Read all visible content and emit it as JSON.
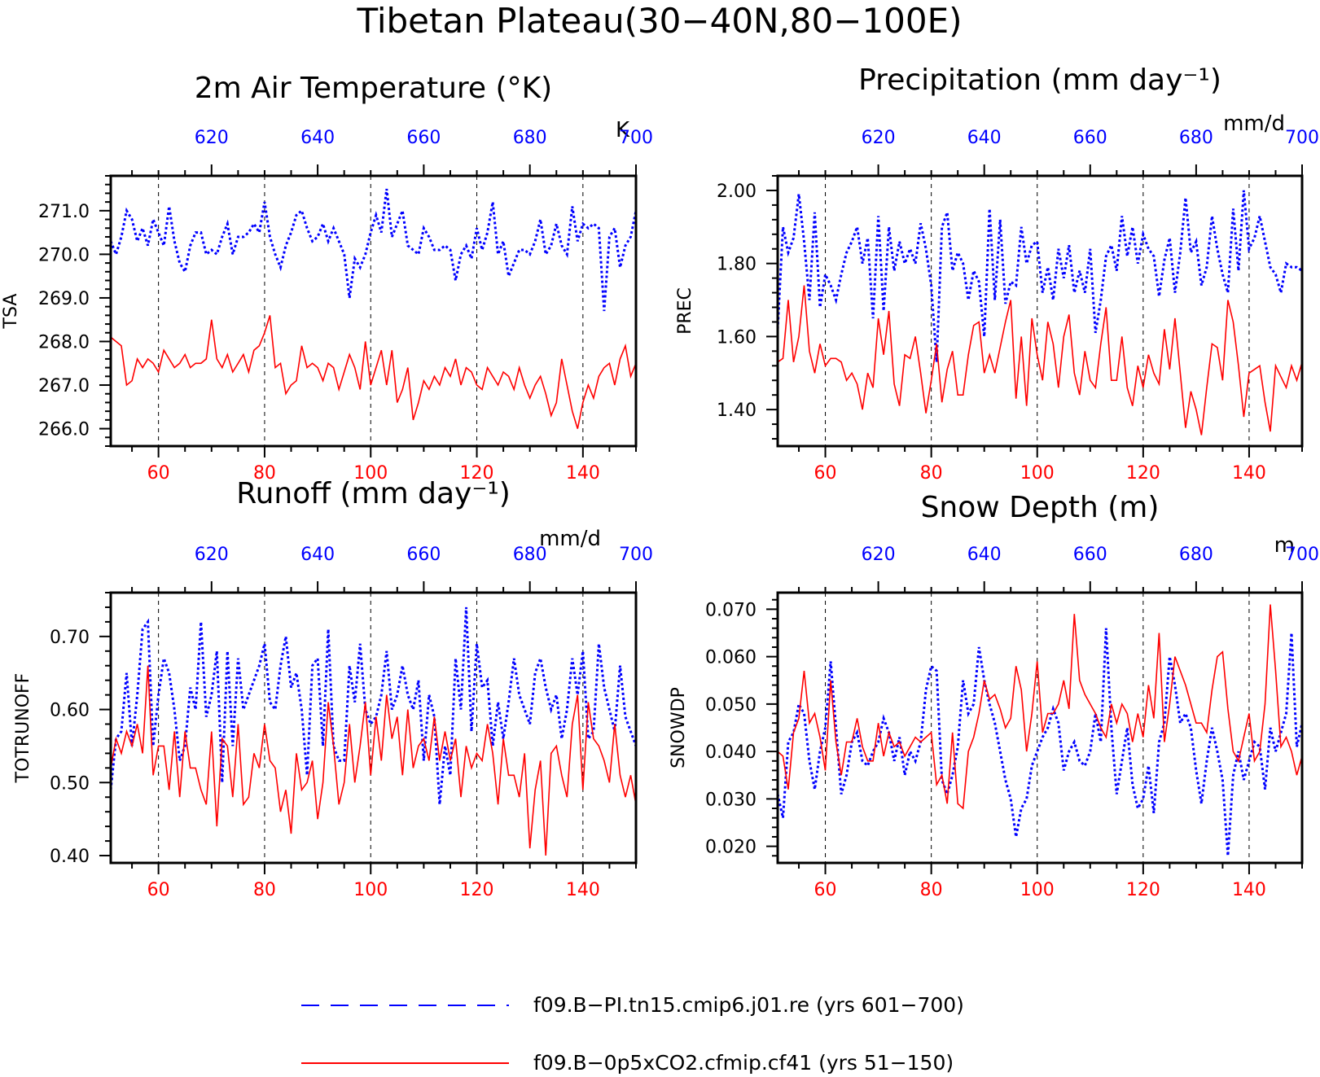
{
  "page_title": "Tibetan Plateau(30−40N,80−100E)",
  "colors": {
    "red": "#ff0000",
    "blue": "#0000ff",
    "axis": "#000000"
  },
  "legend": {
    "blue_label": "f09.B−PI.tn15.cmip6.j01.re (yrs 601−700)",
    "red_label": "f09.B−0p5xCO2.cfmip.cf41 (yrs 51−150)"
  },
  "chart_data": [
    {
      "type": "line",
      "title": "2m Air Temperature (°K)",
      "ylabel": "TSA",
      "units_label": "K",
      "ylim": [
        265.6,
        271.8
      ],
      "yticks": [
        266,
        267,
        268,
        269,
        270,
        271
      ],
      "ytick_labels": [
        "266.0",
        "267.0",
        "268.0",
        "269.0",
        "270.0",
        "271.0"
      ],
      "grid": "dashed vertical at bottom x ticks",
      "x_bottom": {
        "range": [
          51,
          150
        ],
        "ticks": [
          60,
          80,
          100,
          120,
          140
        ]
      },
      "x_top": {
        "range": [
          601,
          700
        ],
        "ticks": [
          620,
          640,
          660,
          680,
          700
        ]
      },
      "series": [
        {
          "name": "f09.B−PI.tn15.cmip6.j01.re (yrs 601−700)",
          "axis": "top",
          "style": "dashed",
          "color": "#0000ff",
          "values": [
            270.3,
            270.0,
            270.4,
            271.0,
            270.8,
            270.3,
            270.6,
            270.2,
            270.8,
            270.5,
            270.2,
            271.1,
            270.3,
            269.8,
            269.6,
            270.2,
            270.5,
            270.5,
            270.0,
            270.1,
            270.0,
            270.4,
            270.7,
            270.0,
            270.4,
            270.4,
            270.5,
            270.7,
            270.5,
            271.2,
            270.4,
            270.0,
            269.7,
            270.2,
            270.5,
            270.9,
            271.0,
            270.6,
            270.3,
            270.4,
            270.7,
            270.3,
            270.6,
            270.3,
            270.0,
            269.0,
            269.9,
            269.7,
            270.0,
            270.5,
            270.9,
            270.5,
            271.5,
            270.4,
            270.7,
            271.0,
            270.2,
            270.1,
            270.0,
            270.6,
            270.4,
            270.1,
            270.1,
            270.2,
            270.1,
            269.4,
            270.0,
            270.2,
            269.9,
            270.6,
            270.1,
            270.5,
            271.2,
            270.0,
            270.3,
            269.5,
            269.8,
            270.1,
            270.1,
            270.0,
            270.3,
            270.8,
            270.0,
            270.2,
            270.7,
            270.2,
            270.0,
            271.1,
            270.3,
            270.7,
            270.6,
            270.7,
            270.6,
            268.7,
            270.4,
            270.6,
            269.7,
            270.2,
            270.4,
            271.0
          ]
        },
        {
          "name": "f09.B−0p5xCO2.cfmip.cf41 (yrs 51−150)",
          "axis": "bottom",
          "style": "solid",
          "color": "#ff0000",
          "values": [
            268.1,
            268.0,
            267.9,
            267.0,
            267.1,
            267.6,
            267.4,
            267.6,
            267.5,
            267.3,
            267.8,
            267.6,
            267.4,
            267.5,
            267.7,
            267.4,
            267.5,
            267.5,
            267.6,
            268.5,
            267.6,
            267.4,
            267.7,
            267.3,
            267.5,
            267.7,
            267.3,
            267.8,
            267.9,
            268.2,
            268.6,
            267.4,
            267.5,
            266.8,
            267.0,
            267.1,
            267.9,
            267.4,
            267.5,
            267.4,
            267.1,
            267.5,
            267.4,
            266.9,
            267.3,
            267.7,
            267.4,
            266.9,
            268.0,
            267.0,
            267.4,
            267.8,
            267.0,
            267.8,
            266.6,
            266.9,
            267.4,
            266.2,
            266.6,
            267.1,
            266.9,
            267.2,
            267.0,
            267.4,
            267.2,
            267.6,
            267.0,
            267.4,
            267.3,
            267.0,
            266.9,
            267.4,
            267.2,
            267.0,
            267.3,
            267.2,
            266.9,
            267.4,
            267.0,
            266.7,
            267.0,
            267.2,
            266.8,
            266.3,
            266.6,
            267.6,
            267.0,
            266.4,
            266.0,
            266.6,
            267.0,
            266.7,
            267.2,
            267.4,
            267.5,
            267.0,
            267.6,
            267.9,
            267.2,
            267.5
          ]
        }
      ]
    },
    {
      "type": "line",
      "title": "Precipitation (mm day⁻¹)",
      "ylabel": "PREC",
      "units_label": "mm/d",
      "ylim": [
        1.3,
        2.04
      ],
      "yticks": [
        1.4,
        1.6,
        1.8,
        2.0
      ],
      "ytick_labels": [
        "1.40",
        "1.60",
        "1.80",
        "2.00"
      ],
      "grid": "dashed vertical at bottom x ticks",
      "x_bottom": {
        "range": [
          51,
          150
        ],
        "ticks": [
          60,
          80,
          100,
          120,
          140
        ]
      },
      "x_top": {
        "range": [
          601,
          700
        ],
        "ticks": [
          620,
          640,
          660,
          680,
          700
        ]
      },
      "series": [
        {
          "name": "f09.B−PI.tn15.cmip6.j01.re (yrs 601−700)",
          "axis": "top",
          "style": "dashed",
          "color": "#0000ff",
          "values": [
            1.62,
            1.9,
            1.83,
            1.87,
            1.99,
            1.86,
            1.7,
            1.94,
            1.68,
            1.77,
            1.74,
            1.7,
            1.77,
            1.83,
            1.86,
            1.9,
            1.8,
            1.87,
            1.65,
            1.93,
            1.67,
            1.9,
            1.78,
            1.86,
            1.8,
            1.84,
            1.8,
            1.91,
            1.84,
            1.74,
            1.53,
            1.9,
            1.94,
            1.78,
            1.83,
            1.8,
            1.7,
            1.78,
            1.75,
            1.6,
            1.95,
            1.7,
            1.92,
            1.69,
            1.75,
            1.74,
            1.9,
            1.8,
            1.85,
            1.86,
            1.72,
            1.79,
            1.7,
            1.84,
            1.76,
            1.85,
            1.72,
            1.78,
            1.72,
            1.84,
            1.61,
            1.7,
            1.82,
            1.85,
            1.78,
            1.93,
            1.82,
            1.9,
            1.8,
            1.88,
            1.84,
            1.82,
            1.71,
            1.81,
            1.87,
            1.72,
            1.83,
            1.98,
            1.83,
            1.86,
            1.74,
            1.79,
            1.93,
            1.84,
            1.77,
            1.72,
            1.95,
            1.78,
            2.0,
            1.84,
            1.87,
            1.93,
            1.86,
            1.79,
            1.77,
            1.72,
            1.8,
            1.79,
            1.79,
            1.78
          ]
        },
        {
          "name": "f09.B−0p5xCO2.cfmip.cf41 (yrs 51−150)",
          "axis": "bottom",
          "style": "solid",
          "color": "#ff0000",
          "values": [
            1.53,
            1.54,
            1.7,
            1.53,
            1.6,
            1.74,
            1.56,
            1.5,
            1.58,
            1.52,
            1.54,
            1.54,
            1.53,
            1.48,
            1.5,
            1.47,
            1.4,
            1.5,
            1.46,
            1.65,
            1.55,
            1.67,
            1.47,
            1.41,
            1.55,
            1.54,
            1.6,
            1.5,
            1.39,
            1.48,
            1.58,
            1.42,
            1.51,
            1.56,
            1.44,
            1.44,
            1.55,
            1.63,
            1.64,
            1.5,
            1.55,
            1.5,
            1.57,
            1.64,
            1.7,
            1.43,
            1.6,
            1.41,
            1.65,
            1.55,
            1.48,
            1.64,
            1.58,
            1.46,
            1.6,
            1.66,
            1.5,
            1.44,
            1.56,
            1.48,
            1.46,
            1.58,
            1.68,
            1.48,
            1.48,
            1.6,
            1.46,
            1.41,
            1.52,
            1.46,
            1.55,
            1.5,
            1.47,
            1.62,
            1.51,
            1.65,
            1.5,
            1.35,
            1.45,
            1.4,
            1.33,
            1.46,
            1.58,
            1.57,
            1.48,
            1.7,
            1.64,
            1.52,
            1.38,
            1.5,
            1.51,
            1.52,
            1.42,
            1.34,
            1.52,
            1.49,
            1.46,
            1.52,
            1.48,
            1.53
          ]
        }
      ]
    },
    {
      "type": "line",
      "title": "Runoff (mm day⁻¹)",
      "ylabel": "TOTRUNOFF",
      "units_label": "mm/d",
      "ylim": [
        0.39,
        0.76
      ],
      "yticks": [
        0.4,
        0.5,
        0.6,
        0.7
      ],
      "ytick_labels": [
        "0.40",
        "0.50",
        "0.60",
        "0.70"
      ],
      "grid": "dashed vertical at bottom x ticks",
      "x_bottom": {
        "range": [
          51,
          150
        ],
        "ticks": [
          60,
          80,
          100,
          120,
          140
        ]
      },
      "x_top": {
        "range": [
          601,
          700
        ],
        "ticks": [
          620,
          640,
          660,
          680,
          700
        ]
      },
      "series": [
        {
          "name": "f09.B−PI.tn15.cmip6.j01.re (yrs 601−700)",
          "axis": "top",
          "style": "dashed",
          "color": "#0000ff",
          "values": [
            0.49,
            0.56,
            0.57,
            0.65,
            0.55,
            0.62,
            0.71,
            0.72,
            0.55,
            0.62,
            0.67,
            0.65,
            0.6,
            0.53,
            0.55,
            0.63,
            0.6,
            0.72,
            0.59,
            0.62,
            0.68,
            0.5,
            0.68,
            0.55,
            0.67,
            0.6,
            0.62,
            0.64,
            0.66,
            0.69,
            0.61,
            0.6,
            0.66,
            0.7,
            0.63,
            0.65,
            0.6,
            0.51,
            0.66,
            0.67,
            0.55,
            0.71,
            0.55,
            0.53,
            0.53,
            0.66,
            0.61,
            0.69,
            0.6,
            0.58,
            0.59,
            0.62,
            0.68,
            0.6,
            0.62,
            0.66,
            0.62,
            0.6,
            0.64,
            0.53,
            0.62,
            0.59,
            0.47,
            0.55,
            0.51,
            0.67,
            0.6,
            0.74,
            0.57,
            0.69,
            0.63,
            0.64,
            0.55,
            0.61,
            0.56,
            0.61,
            0.67,
            0.62,
            0.6,
            0.58,
            0.65,
            0.67,
            0.63,
            0.6,
            0.62,
            0.56,
            0.6,
            0.67,
            0.62,
            0.68,
            0.56,
            0.57,
            0.69,
            0.63,
            0.6,
            0.57,
            0.66,
            0.59,
            0.57,
            0.55
          ]
        },
        {
          "name": "f09.B−0p5xCO2.cfmip.cf41 (yrs 51−150)",
          "axis": "bottom",
          "style": "solid",
          "color": "#ff0000",
          "values": [
            0.52,
            0.56,
            0.54,
            0.57,
            0.55,
            0.58,
            0.54,
            0.66,
            0.51,
            0.55,
            0.55,
            0.49,
            0.57,
            0.48,
            0.57,
            0.52,
            0.52,
            0.49,
            0.47,
            0.57,
            0.44,
            0.56,
            0.55,
            0.48,
            0.58,
            0.47,
            0.48,
            0.54,
            0.52,
            0.58,
            0.53,
            0.52,
            0.46,
            0.49,
            0.43,
            0.54,
            0.49,
            0.5,
            0.53,
            0.45,
            0.5,
            0.61,
            0.55,
            0.47,
            0.5,
            0.58,
            0.5,
            0.55,
            0.61,
            0.51,
            0.59,
            0.53,
            0.62,
            0.56,
            0.59,
            0.51,
            0.6,
            0.52,
            0.55,
            0.56,
            0.53,
            0.59,
            0.53,
            0.57,
            0.53,
            0.56,
            0.48,
            0.55,
            0.52,
            0.54,
            0.53,
            0.58,
            0.54,
            0.47,
            0.56,
            0.51,
            0.51,
            0.48,
            0.54,
            0.41,
            0.49,
            0.53,
            0.4,
            0.54,
            0.55,
            0.51,
            0.48,
            0.58,
            0.62,
            0.49,
            0.61,
            0.56,
            0.55,
            0.53,
            0.5,
            0.58,
            0.51,
            0.48,
            0.51,
            0.47
          ]
        }
      ]
    },
    {
      "type": "line",
      "title": "Snow Depth (m)",
      "ylabel": "SNOWDP",
      "units_label": "m",
      "ylim": [
        0.0165,
        0.0735
      ],
      "yticks": [
        0.02,
        0.03,
        0.04,
        0.05,
        0.06,
        0.07
      ],
      "ytick_labels": [
        "0.020",
        "0.030",
        "0.040",
        "0.050",
        "0.060",
        "0.070"
      ],
      "grid": "dashed vertical at bottom x ticks",
      "x_bottom": {
        "range": [
          51,
          150
        ],
        "ticks": [
          60,
          80,
          100,
          120,
          140
        ]
      },
      "x_top": {
        "range": [
          601,
          700
        ],
        "ticks": [
          620,
          640,
          660,
          680,
          700
        ]
      },
      "series": [
        {
          "name": "f09.B−PI.tn15.cmip6.j01.re (yrs 601−700)",
          "axis": "top",
          "style": "dashed",
          "color": "#0000ff",
          "values": [
            0.031,
            0.026,
            0.042,
            0.044,
            0.05,
            0.048,
            0.038,
            0.032,
            0.04,
            0.045,
            0.059,
            0.045,
            0.031,
            0.035,
            0.042,
            0.044,
            0.038,
            0.037,
            0.04,
            0.042,
            0.047,
            0.044,
            0.038,
            0.043,
            0.035,
            0.04,
            0.038,
            0.042,
            0.053,
            0.058,
            0.057,
            0.034,
            0.031,
            0.035,
            0.041,
            0.055,
            0.048,
            0.05,
            0.062,
            0.055,
            0.05,
            0.046,
            0.04,
            0.034,
            0.03,
            0.022,
            0.028,
            0.03,
            0.037,
            0.04,
            0.043,
            0.045,
            0.049,
            0.046,
            0.036,
            0.04,
            0.042,
            0.038,
            0.037,
            0.04,
            0.048,
            0.042,
            0.066,
            0.045,
            0.031,
            0.038,
            0.045,
            0.033,
            0.028,
            0.03,
            0.037,
            0.027,
            0.042,
            0.046,
            0.06,
            0.054,
            0.046,
            0.048,
            0.045,
            0.036,
            0.029,
            0.038,
            0.045,
            0.04,
            0.034,
            0.018,
            0.035,
            0.04,
            0.034,
            0.038,
            0.042,
            0.041,
            0.032,
            0.045,
            0.04,
            0.044,
            0.048,
            0.065,
            0.041,
            0.046
          ]
        },
        {
          "name": "f09.B−0p5xCO2.cfmip.cf41 (yrs 51−150)",
          "axis": "bottom",
          "style": "solid",
          "color": "#ff0000",
          "values": [
            0.04,
            0.039,
            0.032,
            0.044,
            0.047,
            0.057,
            0.046,
            0.048,
            0.043,
            0.036,
            0.055,
            0.042,
            0.035,
            0.042,
            0.042,
            0.047,
            0.041,
            0.038,
            0.038,
            0.046,
            0.039,
            0.044,
            0.041,
            0.042,
            0.039,
            0.041,
            0.043,
            0.042,
            0.043,
            0.044,
            0.033,
            0.035,
            0.029,
            0.044,
            0.029,
            0.028,
            0.04,
            0.043,
            0.048,
            0.055,
            0.051,
            0.052,
            0.049,
            0.045,
            0.047,
            0.058,
            0.053,
            0.04,
            0.048,
            0.059,
            0.044,
            0.048,
            0.048,
            0.05,
            0.055,
            0.049,
            0.069,
            0.055,
            0.052,
            0.05,
            0.048,
            0.045,
            0.043,
            0.05,
            0.046,
            0.05,
            0.048,
            0.042,
            0.048,
            0.043,
            0.054,
            0.047,
            0.065,
            0.042,
            0.05,
            0.06,
            0.057,
            0.054,
            0.05,
            0.046,
            0.046,
            0.044,
            0.053,
            0.06,
            0.061,
            0.049,
            0.04,
            0.038,
            0.043,
            0.048,
            0.038,
            0.04,
            0.05,
            0.071,
            0.057,
            0.041,
            0.043,
            0.04,
            0.035,
            0.039
          ]
        }
      ]
    }
  ]
}
